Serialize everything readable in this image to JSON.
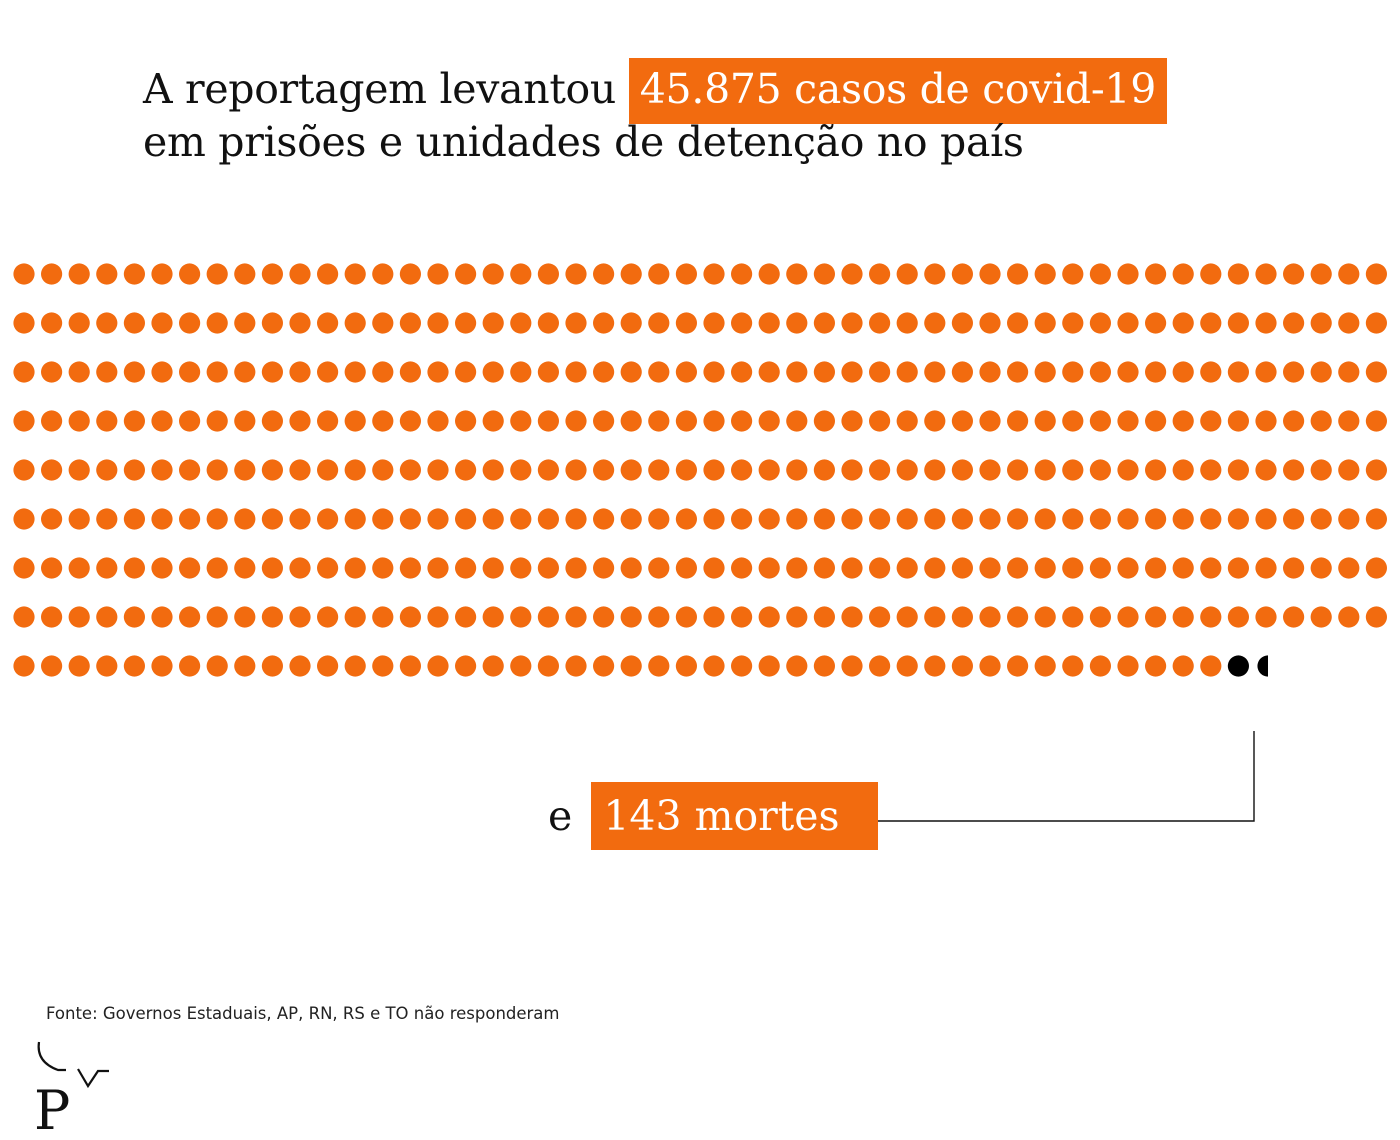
{
  "headline": {
    "prefix": "A reportagem levantou",
    "highlight": "45.875 casos de covid-19",
    "line2": "em prisões e unidades de detenção no país"
  },
  "deaths": {
    "prefix": "e",
    "highlight": "143 mortes"
  },
  "source": "Fonte: Governos Estaduais, AP, RN, RS e TO não responderam",
  "colors": {
    "accent": "#f26b0f",
    "death": "#000000",
    "text": "#111111"
  },
  "chart_data": {
    "type": "dot_matrix",
    "rows": 10,
    "dots_per_row": 50,
    "categories": [
      "casos",
      "mortes"
    ],
    "values": [
      45875,
      143
    ],
    "orange_dots": 444,
    "black_dots": 2
  }
}
